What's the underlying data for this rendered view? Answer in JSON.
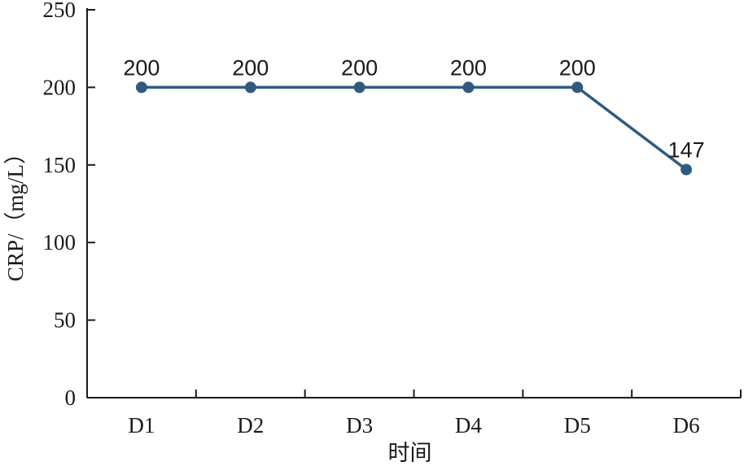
{
  "chart_data": {
    "type": "line",
    "title": "",
    "xlabel": "时间",
    "ylabel": "CRP/（mg/L）",
    "categories": [
      "D1",
      "D2",
      "D3",
      "D4",
      "D5",
      "D6"
    ],
    "series": [
      {
        "values": [
          200,
          200,
          200,
          200,
          200,
          147
        ],
        "color": "#2f5a80"
      }
    ],
    "data_labels": [
      "200",
      "200",
      "200",
      "200",
      "200",
      "147"
    ],
    "ylim": [
      0,
      250
    ],
    "yticks": [
      0,
      50,
      100,
      150,
      200,
      250
    ],
    "ytick_labels": [
      "0",
      "50",
      "100",
      "150",
      "200",
      "250"
    ],
    "grid": false,
    "legend": "none"
  }
}
